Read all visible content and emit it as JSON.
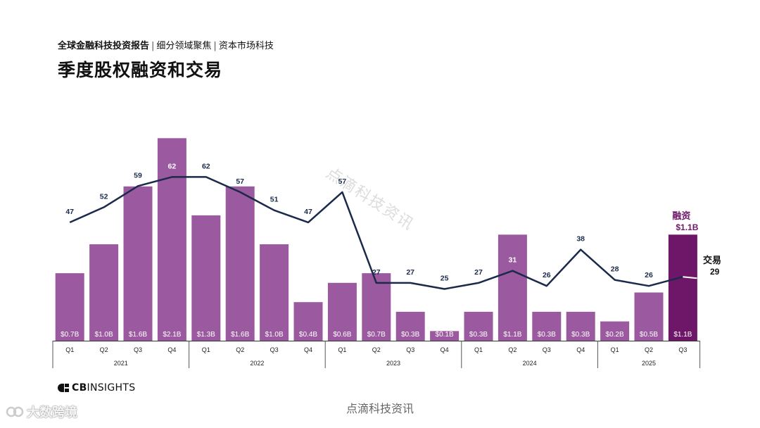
{
  "header": {
    "breadcrumb_main": "全球金融科技投资报告",
    "breadcrumb_sep": "|",
    "breadcrumb_2": "细分领域聚焦",
    "breadcrumb_3": "资本市场科技",
    "title": "季度股权融资和交易"
  },
  "chart_data": {
    "type": "bar+line",
    "title": "季度股权融资和交易",
    "categories": [
      "Q1",
      "Q2",
      "Q3",
      "Q4",
      "Q1",
      "Q2",
      "Q3",
      "Q4",
      "Q1",
      "Q2",
      "Q3",
      "Q4",
      "Q1",
      "Q2",
      "Q3",
      "Q4",
      "Q1",
      "Q2",
      "Q3"
    ],
    "years": [
      {
        "label": "2021",
        "count": 4
      },
      {
        "label": "2022",
        "count": 4
      },
      {
        "label": "2023",
        "count": 4
      },
      {
        "label": "2024",
        "count": 4
      },
      {
        "label": "2025",
        "count": 3
      }
    ],
    "series": [
      {
        "name": "融资",
        "unit": "$B",
        "type": "bar",
        "values": [
          0.7,
          1.0,
          1.6,
          2.1,
          1.3,
          1.6,
          1.0,
          0.4,
          0.6,
          0.7,
          0.3,
          0.1,
          0.3,
          1.1,
          0.3,
          0.3,
          0.2,
          0.5,
          1.1
        ],
        "labels": [
          "$0.7B",
          "$1.0B",
          "$1.6B",
          "$2.1B",
          "$1.3B",
          "$1.6B",
          "$1.0B",
          "$0.4B",
          "$0.6B",
          "$0.7B",
          "$0.3B",
          "$0.1B",
          "$0.3B",
          "$1.1B",
          "$0.3B",
          "$0.3B",
          "$0.2B",
          "$0.5B",
          "$1.1B"
        ],
        "color": "#9b5a9f",
        "highlight_color": "#6e1768"
      },
      {
        "name": "交易",
        "type": "line",
        "values": [
          47,
          52,
          59,
          62,
          62,
          57,
          51,
          47,
          57,
          27,
          27,
          25,
          27,
          31,
          26,
          38,
          28,
          26,
          29
        ],
        "color": "#1b2a4a"
      }
    ],
    "callouts": {
      "funding_label": "融资",
      "funding_value": "$1.1B",
      "deals_label": "交易",
      "deals_value": "29"
    },
    "grid": false
  },
  "footer": {
    "logo_cb": "CB",
    "logo_rest": "INSIGHTS",
    "caption": "点滴科技资讯"
  },
  "watermarks": {
    "diagonal": "点滴科技资讯",
    "brand": "大数跨境"
  }
}
